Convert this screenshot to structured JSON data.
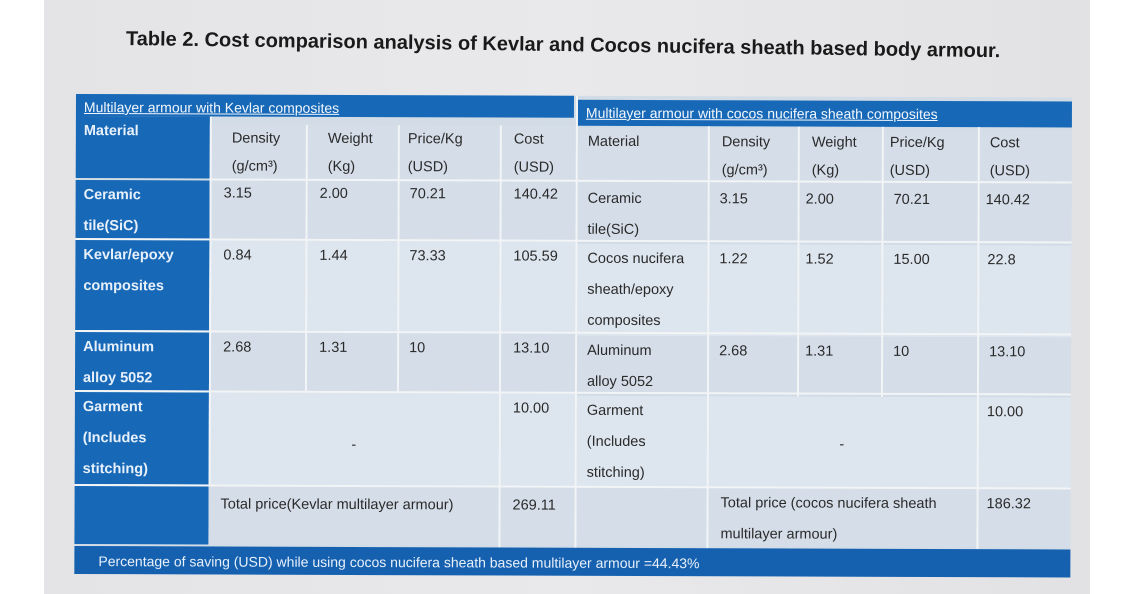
{
  "title": "Table 2. Cost comparison analysis of Kevlar and Cocos nucifera sheath based body armour.",
  "left_section": "Multilayer armour with Kevlar composites",
  "right_section": "Multilayer armour with cocos nucifera sheath composites",
  "columns": {
    "material": "Material",
    "density": [
      "Density",
      "(g/cm³)"
    ],
    "weight": [
      "Weight",
      "(Kg)"
    ],
    "price": [
      "Price/Kg",
      "(USD)"
    ],
    "cost": [
      "Cost",
      "(USD)"
    ]
  },
  "left_rows": [
    {
      "material": [
        "Ceramic",
        "tile(SiC)"
      ],
      "density": "3.15",
      "weight": "2.00",
      "price": "70.21",
      "cost": "140.42"
    },
    {
      "material": [
        "Kevlar/epoxy",
        "composites"
      ],
      "density": "0.84",
      "weight": "1.44",
      "price": "73.33",
      "cost": "105.59"
    },
    {
      "material": [
        "Aluminum",
        "alloy 5052"
      ],
      "density": "2.68",
      "weight": "1.31",
      "price": "10",
      "cost": "13.10"
    },
    {
      "material": [
        "Garment",
        "(Includes",
        "stitching)"
      ],
      "merged": "-",
      "cost": "10.00"
    }
  ],
  "right_rows": [
    {
      "material": [
        "Ceramic",
        "tile(SiC)"
      ],
      "density": "3.15",
      "weight": "2.00",
      "price": "70.21",
      "cost": "140.42"
    },
    {
      "material": [
        "Cocos nucifera",
        "sheath/epoxy",
        "composites"
      ],
      "density": "1.22",
      "weight": "1.52",
      "price": "15.00",
      "cost": "22.8"
    },
    {
      "material": [
        "Aluminum",
        "alloy 5052"
      ],
      "density": "2.68",
      "weight": "1.31",
      "price": "10",
      "cost": "13.10"
    },
    {
      "material": [
        "Garment",
        "(Includes",
        "stitching)"
      ],
      "merged": "-",
      "cost": "10.00"
    }
  ],
  "left_total": {
    "label": "Total price(Kevlar multilayer armour)",
    "value": "269.11"
  },
  "right_total": {
    "label": [
      "Total price (cocos nucifera sheath",
      "multilayer armour)"
    ],
    "value": "186.32"
  },
  "footer": "Percentage of saving (USD) while using cocos nucifera sheath based multilayer armour =44.43%",
  "colors": {
    "header_blue": "#1769b8",
    "cell_light": "#d4dde8"
  }
}
